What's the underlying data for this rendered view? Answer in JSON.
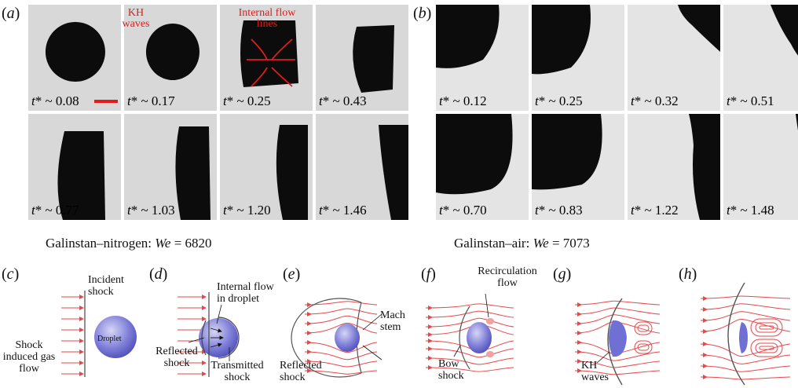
{
  "panels": {
    "a": "(a)",
    "b": "(b)",
    "c": "(c)",
    "d": "(d)",
    "e": "(e)",
    "f": "(f)",
    "g": "(g)",
    "h": "(h)"
  },
  "set_a": {
    "caption_prefix": "Galinstan–nitrogen: ",
    "caption_var": "We",
    "caption_value": " = 6820",
    "frames": [
      "t* ~ 0.08",
      "t* ~ 0.17",
      "t* ~ 0.25",
      "t* ~ 0.43",
      "t* ~ 0.77",
      "t* ~ 1.03",
      "t* ~ 1.20",
      "t* ~ 1.46"
    ],
    "annotations": {
      "kh_waves": "KH waves",
      "internal_flow_lines": "Internal flow lines"
    }
  },
  "set_b": {
    "caption_prefix": "Galinstan–air: ",
    "caption_var": "We",
    "caption_value": " = 7073",
    "frames": [
      "t* ~ 0.12",
      "t* ~ 0.25",
      "t* ~ 0.32",
      "t* ~ 0.51",
      "t* ~ 0.70",
      "t* ~ 0.83",
      "t* ~ 1.22",
      "t* ~ 1.48"
    ]
  },
  "schematics": {
    "c": {
      "incident_shock": "Incident shock",
      "droplet": "Droplet",
      "gas_flow": "Shock induced gas flow"
    },
    "d": {
      "internal_flow": "Internal flow in droplet",
      "reflected_shock": "Reflected shock",
      "transmitted_shock": "Transmitted shock"
    },
    "e": {
      "mach_stem": "Mach stem",
      "reflected_shock": "Reflected shock"
    },
    "f": {
      "recirculation_flow": "Recirculation flow",
      "bow_shock": "Bow shock"
    },
    "g": {
      "kh_waves": "KH waves"
    }
  },
  "colors": {
    "flow_line": "#e8474a",
    "droplet_fill": "#6f6fd6",
    "annotation_red": "#e21b1b",
    "frame_bg": "#d6d6d6"
  }
}
